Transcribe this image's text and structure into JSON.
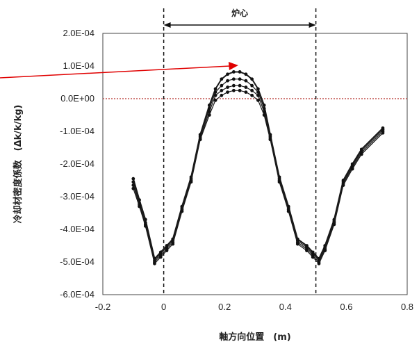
{
  "chart_data": {
    "type": "line",
    "xlabel": "軸方向位置　(m)",
    "ylabel": "冷却材密度係数　(Δk/k/kg)",
    "xlim": [
      -0.2,
      0.8
    ],
    "ylim": [
      -0.0006,
      0.0002
    ],
    "x_ticks": [
      "-0.2",
      "0",
      "0.2",
      "0.4",
      "0.6",
      "0.8"
    ],
    "y_ticks": [
      "2.0E-04",
      "1.0E-04",
      "0.0E+00",
      "-1.0E-04",
      "-2.0E-04",
      "-3.0E-04",
      "-4.0E-04",
      "-5.0E-04",
      "-6.0E-04"
    ],
    "grid": false,
    "reference_lines": {
      "zero_line_color": "#c0504d",
      "core_boundaries_x": [
        0,
        0.5
      ]
    },
    "annotation": {
      "text": "炉心",
      "arrow_from_x": 0,
      "arrow_to_x": 0.5,
      "pointer_color": "#e00000"
    },
    "series": [
      {
        "x": [
          -0.1,
          -0.08,
          -0.06,
          -0.03,
          -0.01,
          0.01,
          0.03,
          0.06,
          0.09,
          0.12,
          0.15,
          0.17,
          0.19,
          0.21,
          0.23,
          0.25,
          0.27,
          0.29,
          0.31,
          0.33,
          0.35,
          0.38,
          0.41,
          0.44,
          0.47,
          0.49,
          0.51,
          0.53,
          0.56,
          0.59,
          0.62,
          0.65,
          0.72
        ],
        "values": [
          -0.000245,
          -0.00031,
          -0.00037,
          -0.00049,
          -0.00047,
          -0.00045,
          -0.00043,
          -0.00033,
          -0.00024,
          -0.00011,
          -2e-05,
          3e-05,
          6e-05,
          7.5e-05,
          8.2e-05,
          8.2e-05,
          7.5e-05,
          6e-05,
          3e-05,
          -2e-05,
          -0.00011,
          -0.00024,
          -0.00033,
          -0.00043,
          -0.00045,
          -0.00047,
          -0.00049,
          -0.00045,
          -0.00037,
          -0.00025,
          -0.0002,
          -0.000155,
          -9e-05
        ]
      },
      {
        "x": [
          -0.1,
          -0.08,
          -0.06,
          -0.03,
          -0.01,
          0.01,
          0.03,
          0.06,
          0.09,
          0.12,
          0.15,
          0.17,
          0.19,
          0.21,
          0.23,
          0.25,
          0.27,
          0.29,
          0.31,
          0.33,
          0.35,
          0.38,
          0.41,
          0.44,
          0.47,
          0.49,
          0.51,
          0.53,
          0.56,
          0.59,
          0.62,
          0.65,
          0.72
        ],
        "values": [
          -0.000255,
          -0.00032,
          -0.00038,
          -0.000495,
          -0.000475,
          -0.000455,
          -0.000435,
          -0.000335,
          -0.000245,
          -0.000115,
          -3e-05,
          2e-05,
          4e-05,
          5.5e-05,
          6e-05,
          6e-05,
          5.5e-05,
          4e-05,
          2e-05,
          -3e-05,
          -0.000115,
          -0.000245,
          -0.000335,
          -0.000435,
          -0.000455,
          -0.000475,
          -0.000495,
          -0.000455,
          -0.000375,
          -0.000255,
          -0.000205,
          -0.00016,
          -9.5e-05
        ]
      },
      {
        "x": [
          -0.1,
          -0.08,
          -0.06,
          -0.03,
          -0.01,
          0.01,
          0.03,
          0.06,
          0.09,
          0.12,
          0.15,
          0.17,
          0.19,
          0.21,
          0.23,
          0.25,
          0.27,
          0.29,
          0.31,
          0.33,
          0.35,
          0.38,
          0.41,
          0.44,
          0.47,
          0.49,
          0.51,
          0.53,
          0.56,
          0.59,
          0.62,
          0.65,
          0.72
        ],
        "values": [
          -0.000265,
          -0.000325,
          -0.000385,
          -0.0005,
          -0.00048,
          -0.00046,
          -0.00044,
          -0.00034,
          -0.00025,
          -0.00012,
          -4e-05,
          1e-05,
          2.5e-05,
          3.5e-05,
          4e-05,
          4e-05,
          3.5e-05,
          2.5e-05,
          1e-05,
          -4e-05,
          -0.00012,
          -0.00025,
          -0.00034,
          -0.00044,
          -0.00046,
          -0.00048,
          -0.0005,
          -0.00046,
          -0.00038,
          -0.00026,
          -0.00021,
          -0.000165,
          -0.0001
        ]
      },
      {
        "x": [
          -0.1,
          -0.08,
          -0.06,
          -0.03,
          -0.01,
          0.01,
          0.03,
          0.06,
          0.09,
          0.12,
          0.15,
          0.17,
          0.19,
          0.21,
          0.23,
          0.25,
          0.27,
          0.29,
          0.31,
          0.33,
          0.35,
          0.38,
          0.41,
          0.44,
          0.47,
          0.49,
          0.51,
          0.53,
          0.56,
          0.59,
          0.62,
          0.65,
          0.72
        ],
        "values": [
          -0.000275,
          -0.00033,
          -0.00039,
          -0.000505,
          -0.000485,
          -0.000465,
          -0.000445,
          -0.000345,
          -0.000255,
          -0.000125,
          -5e-05,
          -5e-06,
          1e-05,
          2e-05,
          2.5e-05,
          2.5e-05,
          2e-05,
          1e-05,
          -5e-06,
          -5e-05,
          -0.000125,
          -0.000255,
          -0.000345,
          -0.000445,
          -0.000465,
          -0.000485,
          -0.000505,
          -0.000465,
          -0.000385,
          -0.000265,
          -0.000215,
          -0.00017,
          -0.000105
        ]
      }
    ]
  }
}
